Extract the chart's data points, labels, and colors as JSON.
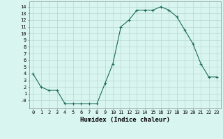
{
  "x": [
    0,
    1,
    2,
    3,
    4,
    5,
    6,
    7,
    8,
    9,
    10,
    11,
    12,
    13,
    14,
    15,
    16,
    17,
    18,
    19,
    20,
    21,
    22,
    23
  ],
  "y": [
    4.0,
    2.0,
    1.5,
    1.5,
    -0.5,
    -0.5,
    -0.5,
    -0.5,
    -0.5,
    2.5,
    5.5,
    11.0,
    12.0,
    13.5,
    13.5,
    13.5,
    14.0,
    13.5,
    12.5,
    10.5,
    8.5,
    5.5,
    3.5,
    3.5
  ],
  "line_color": "#1a6b5a",
  "marker": "+",
  "marker_size": 3,
  "marker_lw": 0.8,
  "bg_color": "#d9f5f0",
  "grid_color": "#b8d8d2",
  "xlabel": "Humidex (Indice chaleur)",
  "xlim": [
    -0.5,
    23.5
  ],
  "ylim": [
    -1.2,
    14.8
  ],
  "yticks": [
    0,
    1,
    2,
    3,
    4,
    5,
    6,
    7,
    8,
    9,
    10,
    11,
    12,
    13,
    14
  ],
  "ytick_labels": [
    "-0",
    "1",
    "2",
    "3",
    "4",
    "5",
    "6",
    "7",
    "8",
    "9",
    "10",
    "11",
    "12",
    "13",
    "14"
  ],
  "xticks": [
    0,
    1,
    2,
    3,
    4,
    5,
    6,
    7,
    8,
    9,
    10,
    11,
    12,
    13,
    14,
    15,
    16,
    17,
    18,
    19,
    20,
    21,
    22,
    23
  ],
  "tick_fontsize": 5.0,
  "xlabel_fontsize": 6.5,
  "line_width": 0.8
}
